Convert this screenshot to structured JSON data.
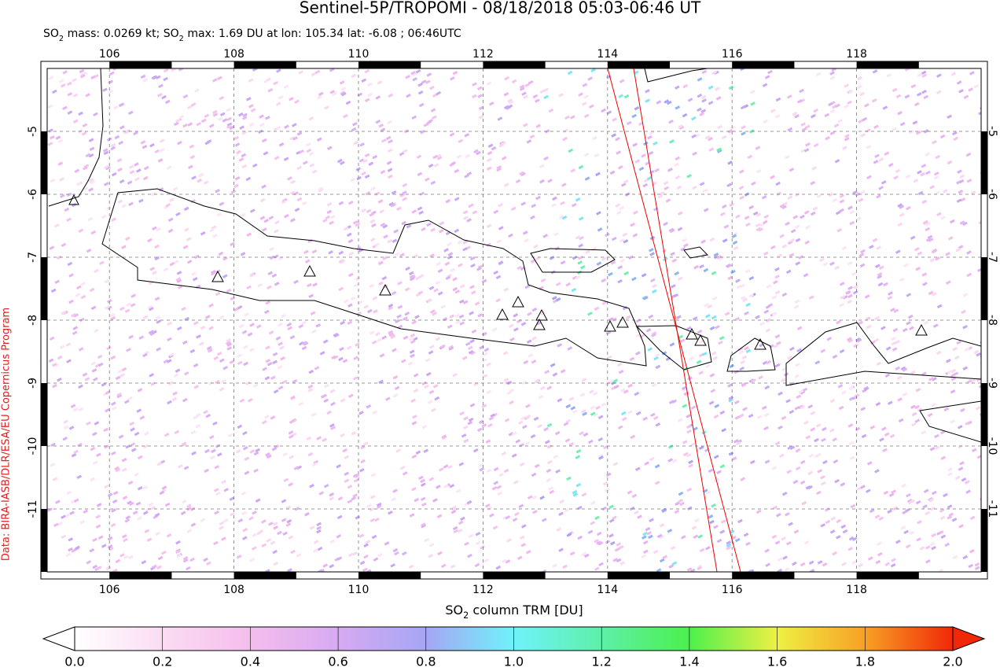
{
  "title": "Sentinel-5P/TROPOMI - 08/18/2018 05:03-06:46 UT",
  "subtitle": {
    "parts": [
      "SO",
      "2",
      " mass: 0.0269 kt; SO",
      "2",
      " max: 1.69 DU at lon: 105.34 lat: -6.08 ; 06:46UTC"
    ]
  },
  "credit": "Data: BIRA-IASB/DLR/ESA/EU Copernicus Program",
  "map": {
    "lon_range": [
      105,
      120
    ],
    "lat_range": [
      -12,
      -4
    ],
    "lon_ticks": [
      106,
      108,
      110,
      112,
      114,
      116,
      118
    ],
    "lat_ticks": [
      -5,
      -6,
      -7,
      -8,
      -9,
      -10,
      -11
    ]
  },
  "colorbar": {
    "label_parts": [
      "SO",
      "2",
      " column TRM [DU]"
    ],
    "range": [
      0,
      2
    ],
    "ticks": [
      {
        "value": 0,
        "label": "0.0"
      },
      {
        "value": 0.2,
        "label": "0.2"
      },
      {
        "value": 0.4,
        "label": "0.4"
      },
      {
        "value": 0.6,
        "label": "0.6"
      },
      {
        "value": 0.8,
        "label": "0.8"
      },
      {
        "value": 1,
        "label": "1.0"
      },
      {
        "value": 1.2,
        "label": "1.2"
      },
      {
        "value": 1.4,
        "label": "1.4"
      },
      {
        "value": 1.6,
        "label": "1.6"
      },
      {
        "value": 1.8,
        "label": "1.8"
      },
      {
        "value": 2,
        "label": "2.0"
      }
    ]
  }
}
